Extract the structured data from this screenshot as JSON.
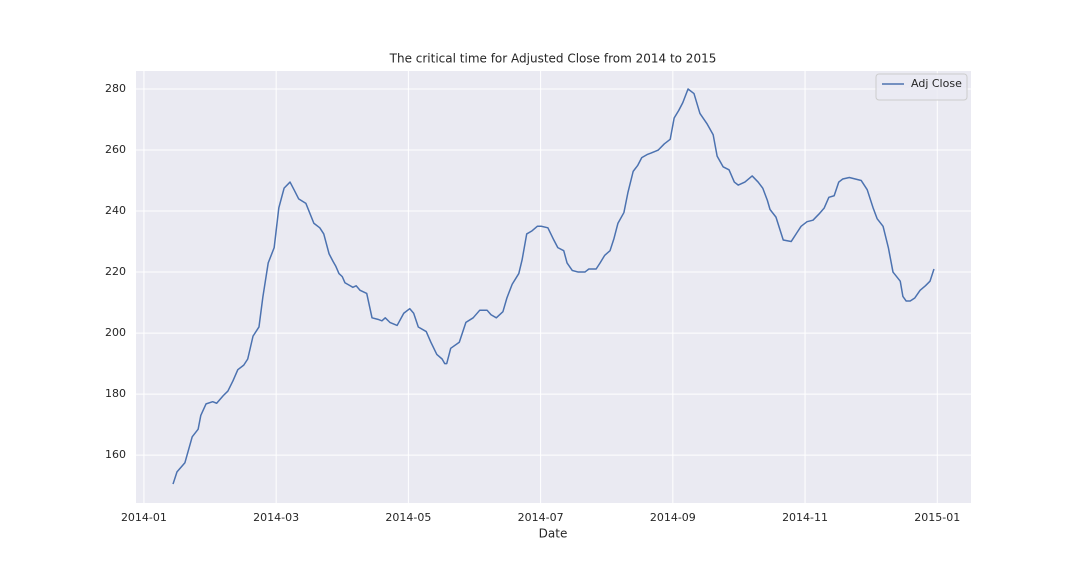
{
  "chart_data": {
    "type": "line",
    "title": "The critical time for Adjusted Close from 2014 to 2015",
    "xlabel": "Date",
    "x": [
      1.44,
      1.5,
      1.62,
      1.73,
      1.82,
      1.86,
      1.94,
      2.04,
      2.1,
      2.2,
      2.27,
      2.35,
      2.42,
      2.51,
      2.57,
      2.65,
      2.74,
      2.8,
      2.88,
      2.97,
      3.04,
      3.12,
      3.21,
      3.27,
      3.34,
      3.45,
      3.57,
      3.66,
      3.72,
      3.8,
      3.86,
      3.9,
      3.95,
      4.0,
      4.04,
      4.12,
      4.16,
      4.21,
      4.27,
      4.37,
      4.45,
      4.54,
      4.6,
      4.65,
      4.72,
      4.83,
      4.93,
      5.02,
      5.08,
      5.15,
      5.27,
      5.34,
      5.43,
      5.51,
      5.55,
      5.58,
      5.64,
      5.77,
      5.87,
      5.98,
      6.08,
      6.19,
      6.25,
      6.33,
      6.43,
      6.49,
      6.57,
      6.67,
      6.72,
      6.79,
      6.87,
      6.95,
      7.01,
      7.11,
      7.2,
      7.26,
      7.35,
      7.4,
      7.48,
      7.57,
      7.67,
      7.73,
      7.84,
      7.9,
      7.97,
      8.05,
      8.11,
      8.17,
      8.26,
      8.32,
      8.4,
      8.47,
      8.53,
      8.61,
      8.67,
      8.78,
      8.87,
      8.96,
      9.02,
      9.09,
      9.15,
      9.23,
      9.32,
      9.41,
      9.52,
      9.61,
      9.67,
      9.76,
      9.85,
      9.93,
      9.99,
      10.09,
      10.2,
      10.29,
      10.36,
      10.43,
      10.47,
      10.56,
      10.67,
      10.79,
      10.88,
      10.94,
      11.03,
      11.12,
      11.21,
      11.29,
      11.36,
      11.44,
      11.51,
      11.57,
      11.67,
      11.76,
      11.85,
      11.94,
      12.03,
      12.09,
      12.18,
      12.26,
      12.33,
      12.44,
      12.48,
      12.53,
      12.59,
      12.66,
      12.74,
      12.82,
      12.89,
      12.95
    ],
    "series": [
      {
        "name": "Adj Close",
        "color": "#4c72b0",
        "values": [
          150.5,
          154.5,
          157.5,
          166,
          168.5,
          173,
          176.8,
          177.5,
          177,
          179.5,
          181,
          184.5,
          188,
          189.5,
          191.5,
          199,
          202,
          212,
          223,
          228,
          241,
          247.5,
          249.5,
          247,
          244,
          242.5,
          236,
          234.5,
          232.5,
          226,
          223.5,
          222,
          219.5,
          218.5,
          216.5,
          215.5,
          215,
          215.5,
          214,
          213,
          205,
          204.5,
          204,
          205,
          203.5,
          202.5,
          206.5,
          208,
          206.5,
          202,
          200.5,
          197,
          193,
          191.5,
          190,
          190,
          195,
          197,
          203.5,
          205,
          207.5,
          207.5,
          206,
          205,
          207,
          211.5,
          216,
          219.5,
          224,
          232.5,
          233.5,
          235,
          235,
          234.5,
          230.5,
          228,
          227,
          223,
          220.5,
          220,
          220,
          221,
          221,
          223,
          225.5,
          227,
          231,
          236,
          239.5,
          246,
          253,
          255,
          257.5,
          258.5,
          259,
          260,
          262,
          263.5,
          270.5,
          273,
          275.5,
          280,
          278.5,
          272,
          268.5,
          265,
          258,
          254.5,
          253.5,
          249.5,
          248.5,
          249.5,
          251.5,
          249.5,
          247.5,
          243.5,
          240.5,
          238,
          230.5,
          230,
          233,
          235,
          236.5,
          237,
          239,
          241,
          244.5,
          245,
          249.5,
          250.5,
          251,
          250.5,
          250,
          247,
          241,
          237.5,
          235,
          228,
          220,
          217,
          212,
          210.5,
          210.5,
          211.5,
          214,
          215.5,
          217,
          221
        ]
      }
    ],
    "xlim": [
      0.88,
      13.51
    ],
    "xticks": [
      {
        "value": 1,
        "label": "2014-01"
      },
      {
        "value": 3,
        "label": "2014-03"
      },
      {
        "value": 5,
        "label": "2014-05"
      },
      {
        "value": 7,
        "label": "2014-07"
      },
      {
        "value": 9,
        "label": "2014-09"
      },
      {
        "value": 11,
        "label": "2014-11"
      },
      {
        "value": 13,
        "label": "2015-01"
      }
    ],
    "ylim": [
      144.3,
      285.9
    ],
    "yticks": [
      160,
      180,
      200,
      220,
      240,
      260,
      280
    ],
    "grid": true,
    "legend": "upper right"
  }
}
